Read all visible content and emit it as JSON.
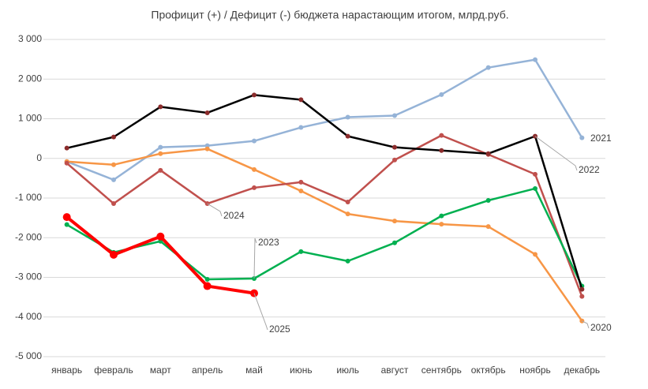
{
  "chart_data": {
    "type": "line",
    "title": "Профицит (+) / Дефицит (-) бюджета нарастающим итогом, млрд.руб.",
    "categories": [
      "январь",
      "февраль",
      "март",
      "апрель",
      "май",
      "июнь",
      "июль",
      "август",
      "сентябрь",
      "октябрь",
      "ноябрь",
      "декабрь"
    ],
    "ylim": [
      -5000,
      3000
    ],
    "yticks": [
      {
        "value": -5000,
        "label": "-5 000"
      },
      {
        "value": -4000,
        "label": "-4 000"
      },
      {
        "value": -3000,
        "label": "-3 000"
      },
      {
        "value": -2000,
        "label": "-2 000"
      },
      {
        "value": -1000,
        "label": "-1 000"
      },
      0,
      {
        "value": 1000,
        "label": "1 000"
      },
      {
        "value": 2000,
        "label": "2 000"
      },
      {
        "value": 3000,
        "label": "3 000"
      }
    ],
    "grid": true,
    "series": [
      {
        "name": "2021",
        "color": "#95b3d7",
        "values": [
          -80,
          -540,
          280,
          320,
          440,
          780,
          1040,
          1080,
          1610,
          2290,
          2490,
          520
        ]
      },
      {
        "name": "2020",
        "color": "#f79646",
        "values": [
          -80,
          -160,
          120,
          240,
          -280,
          -820,
          -1400,
          -1580,
          -1660,
          -1720,
          -2420,
          -4100
        ]
      },
      {
        "name": "2024",
        "color": "#c0504d",
        "values": [
          -120,
          -1140,
          -300,
          -1140,
          -740,
          -600,
          -1100,
          -40,
          580,
          100,
          -400,
          -3480
        ]
      },
      {
        "name": "2023",
        "color": "#00b050",
        "values": [
          -1670,
          -2370,
          -2090,
          -3050,
          -3030,
          -2350,
          -2590,
          -2130,
          -1450,
          -1060,
          -760,
          -3220
        ]
      },
      {
        "name": "2022",
        "color": "#000000",
        "values": [
          260,
          540,
          1300,
          1150,
          1600,
          1480,
          560,
          280,
          200,
          120,
          560,
          -3300
        ]
      },
      {
        "name": "2025",
        "color": "#ff0000",
        "values": [
          -1480,
          -2430,
          -1970,
          -3220,
          -3400,
          null,
          null,
          null,
          null,
          null,
          null,
          null
        ]
      }
    ]
  }
}
